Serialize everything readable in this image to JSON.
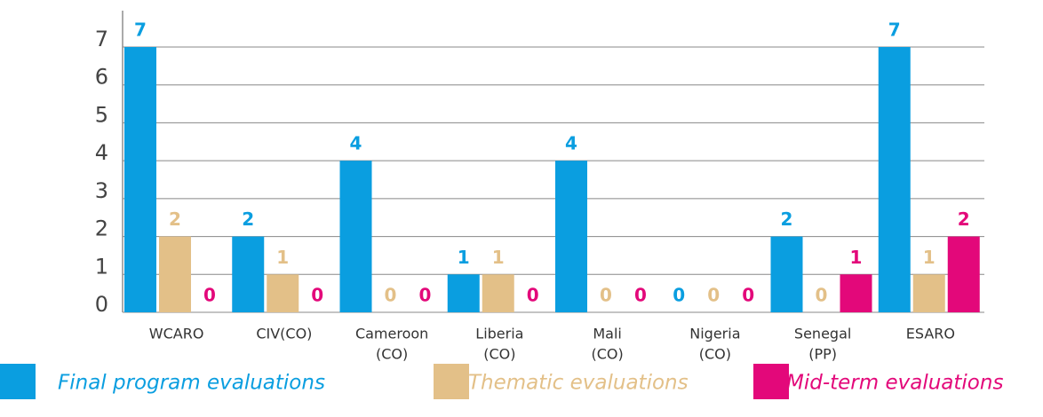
{
  "chart_data": {
    "type": "bar",
    "categories": [
      [
        "WCARO"
      ],
      [
        "CIV(CO)"
      ],
      [
        "Cameroon",
        "(CO)"
      ],
      [
        "Liberia",
        "(CO)"
      ],
      [
        "Mali",
        "(CO)"
      ],
      [
        "Nigeria",
        "(CO)"
      ],
      [
        "Senegal",
        "(PP)"
      ],
      [
        "ESARO"
      ]
    ],
    "series": [
      {
        "name": "Final program evaluations",
        "color": "#0a9ee0",
        "values": [
          7,
          2,
          4,
          1,
          4,
          0,
          2,
          7
        ]
      },
      {
        "name": "Thematic evaluations",
        "color": "#e3c088",
        "values": [
          2,
          1,
          0,
          1,
          0,
          0,
          0,
          1
        ]
      },
      {
        "name": "Mid-term evaluations",
        "color": "#e3087a",
        "values": [
          0,
          0,
          0,
          0,
          0,
          0,
          1,
          2
        ]
      }
    ],
    "ylim": [
      0,
      7
    ],
    "yticks": [
      0,
      1,
      2,
      3,
      4,
      5,
      6,
      7
    ],
    "grid": true
  }
}
